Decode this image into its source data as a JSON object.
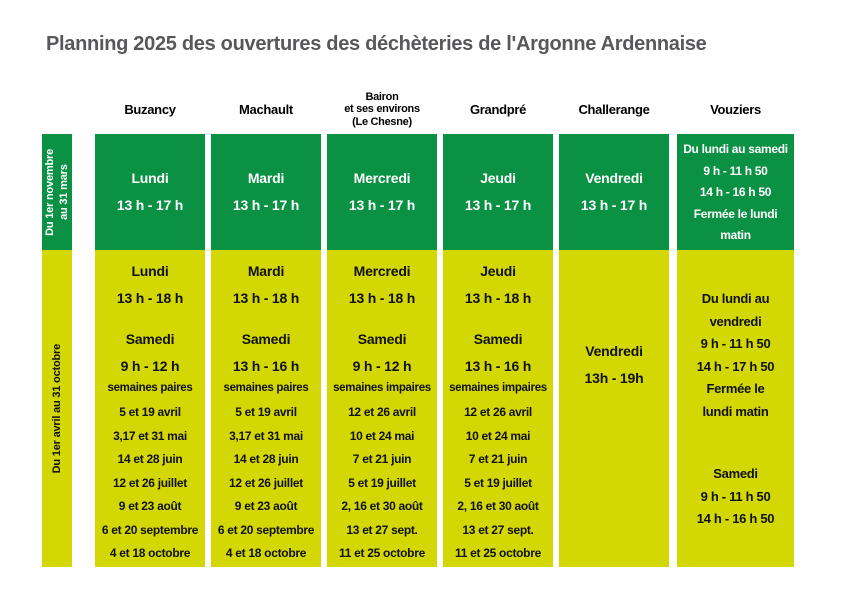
{
  "title": "Planning 2025 des ouvertures des déchèteries de l'Argonne Ardennaise",
  "colors": {
    "green": "#0a9143",
    "yellow": "#d3d703",
    "title_gray": "#58585b"
  },
  "row_labels": {
    "winter": {
      "line1": "Du 1er novembre",
      "line2": "au 31 mars"
    },
    "summer": "Du 1er avril au 31 octobre"
  },
  "columns": [
    {
      "header": {
        "line1": "Buzancy"
      },
      "winter": {
        "line1": "Lundi",
        "line2": "13 h - 17 h"
      },
      "summer": {
        "weekday": {
          "line1": "Lundi",
          "line2": "13 h - 18 h"
        },
        "saturday": {
          "line1": "Samedi",
          "line2": "9 h - 12 h"
        },
        "note": "semaines paires",
        "dates": [
          "5 et 19 avril",
          "3,17 et 31 mai",
          "14 et 28 juin",
          "12 et 26 juillet",
          "9 et 23 août",
          "6 et 20 septembre",
          "4 et 18 octobre"
        ]
      }
    },
    {
      "header": {
        "line1": "Machault"
      },
      "winter": {
        "line1": "Mardi",
        "line2": "13 h - 17 h"
      },
      "summer": {
        "weekday": {
          "line1": "Mardi",
          "line2": "13 h - 18 h"
        },
        "saturday": {
          "line1": "Samedi",
          "line2": "13 h - 16 h"
        },
        "note": "semaines paires",
        "dates": [
          "5 et 19 avril",
          "3,17 et 31 mai",
          "14 et 28 juin",
          "12 et 26 juillet",
          "9 et 23 août",
          "6 et 20 septembre",
          "4 et 18 octobre"
        ]
      }
    },
    {
      "header": {
        "line1": "Bairon",
        "line2": "et ses environs",
        "line3": "(Le Chesne)"
      },
      "winter": {
        "line1": "Mercredi",
        "line2": "13 h - 17 h"
      },
      "summer": {
        "weekday": {
          "line1": "Mercredi",
          "line2": "13 h - 18 h"
        },
        "saturday": {
          "line1": "Samedi",
          "line2": "9 h - 12 h"
        },
        "note": "semaines impaires",
        "dates": [
          "12 et 26 avril",
          "10 et 24 mai",
          "7 et 21 juin",
          "5 et 19 juillet",
          "2, 16 et 30 août",
          "13 et 27 sept.",
          "11 et 25 octobre"
        ]
      }
    },
    {
      "header": {
        "line1": "Grandpré"
      },
      "winter": {
        "line1": "Jeudi",
        "line2": "13 h - 17 h"
      },
      "summer": {
        "weekday": {
          "line1": "Jeudi",
          "line2": "13 h - 18 h"
        },
        "saturday": {
          "line1": "Samedi",
          "line2": "13 h - 16 h"
        },
        "note": "semaines impaires",
        "dates": [
          "12 et 26 avril",
          "10 et 24 mai",
          "7 et 21 juin",
          "5 et 19 juillet",
          "2, 16 et 30 août",
          "13 et 27 sept.",
          "11 et 25 octobre"
        ]
      }
    },
    {
      "header": {
        "line1": "Challerange"
      },
      "winter": {
        "line1": "Vendredi",
        "line2": "13 h - 17 h"
      },
      "summer": {
        "centered": {
          "line1": "Vendredi",
          "line2": "13h - 19h"
        }
      }
    },
    {
      "header": {
        "line1": "Vouziers"
      },
      "winter": {
        "lines": [
          "Du lundi au samedi",
          "9 h - 11 h 50",
          "14 h - 16 h 50",
          "Fermée le lundi",
          "matin"
        ]
      },
      "summer": {
        "week_block": [
          "Du lundi au",
          "vendredi",
          "9 h - 11 h 50",
          "14 h - 17 h 50",
          "Fermée le",
          "lundi matin"
        ],
        "saturday_block": [
          "Samedi",
          "9 h - 11 h 50",
          "14 h - 16 h 50"
        ]
      }
    }
  ]
}
